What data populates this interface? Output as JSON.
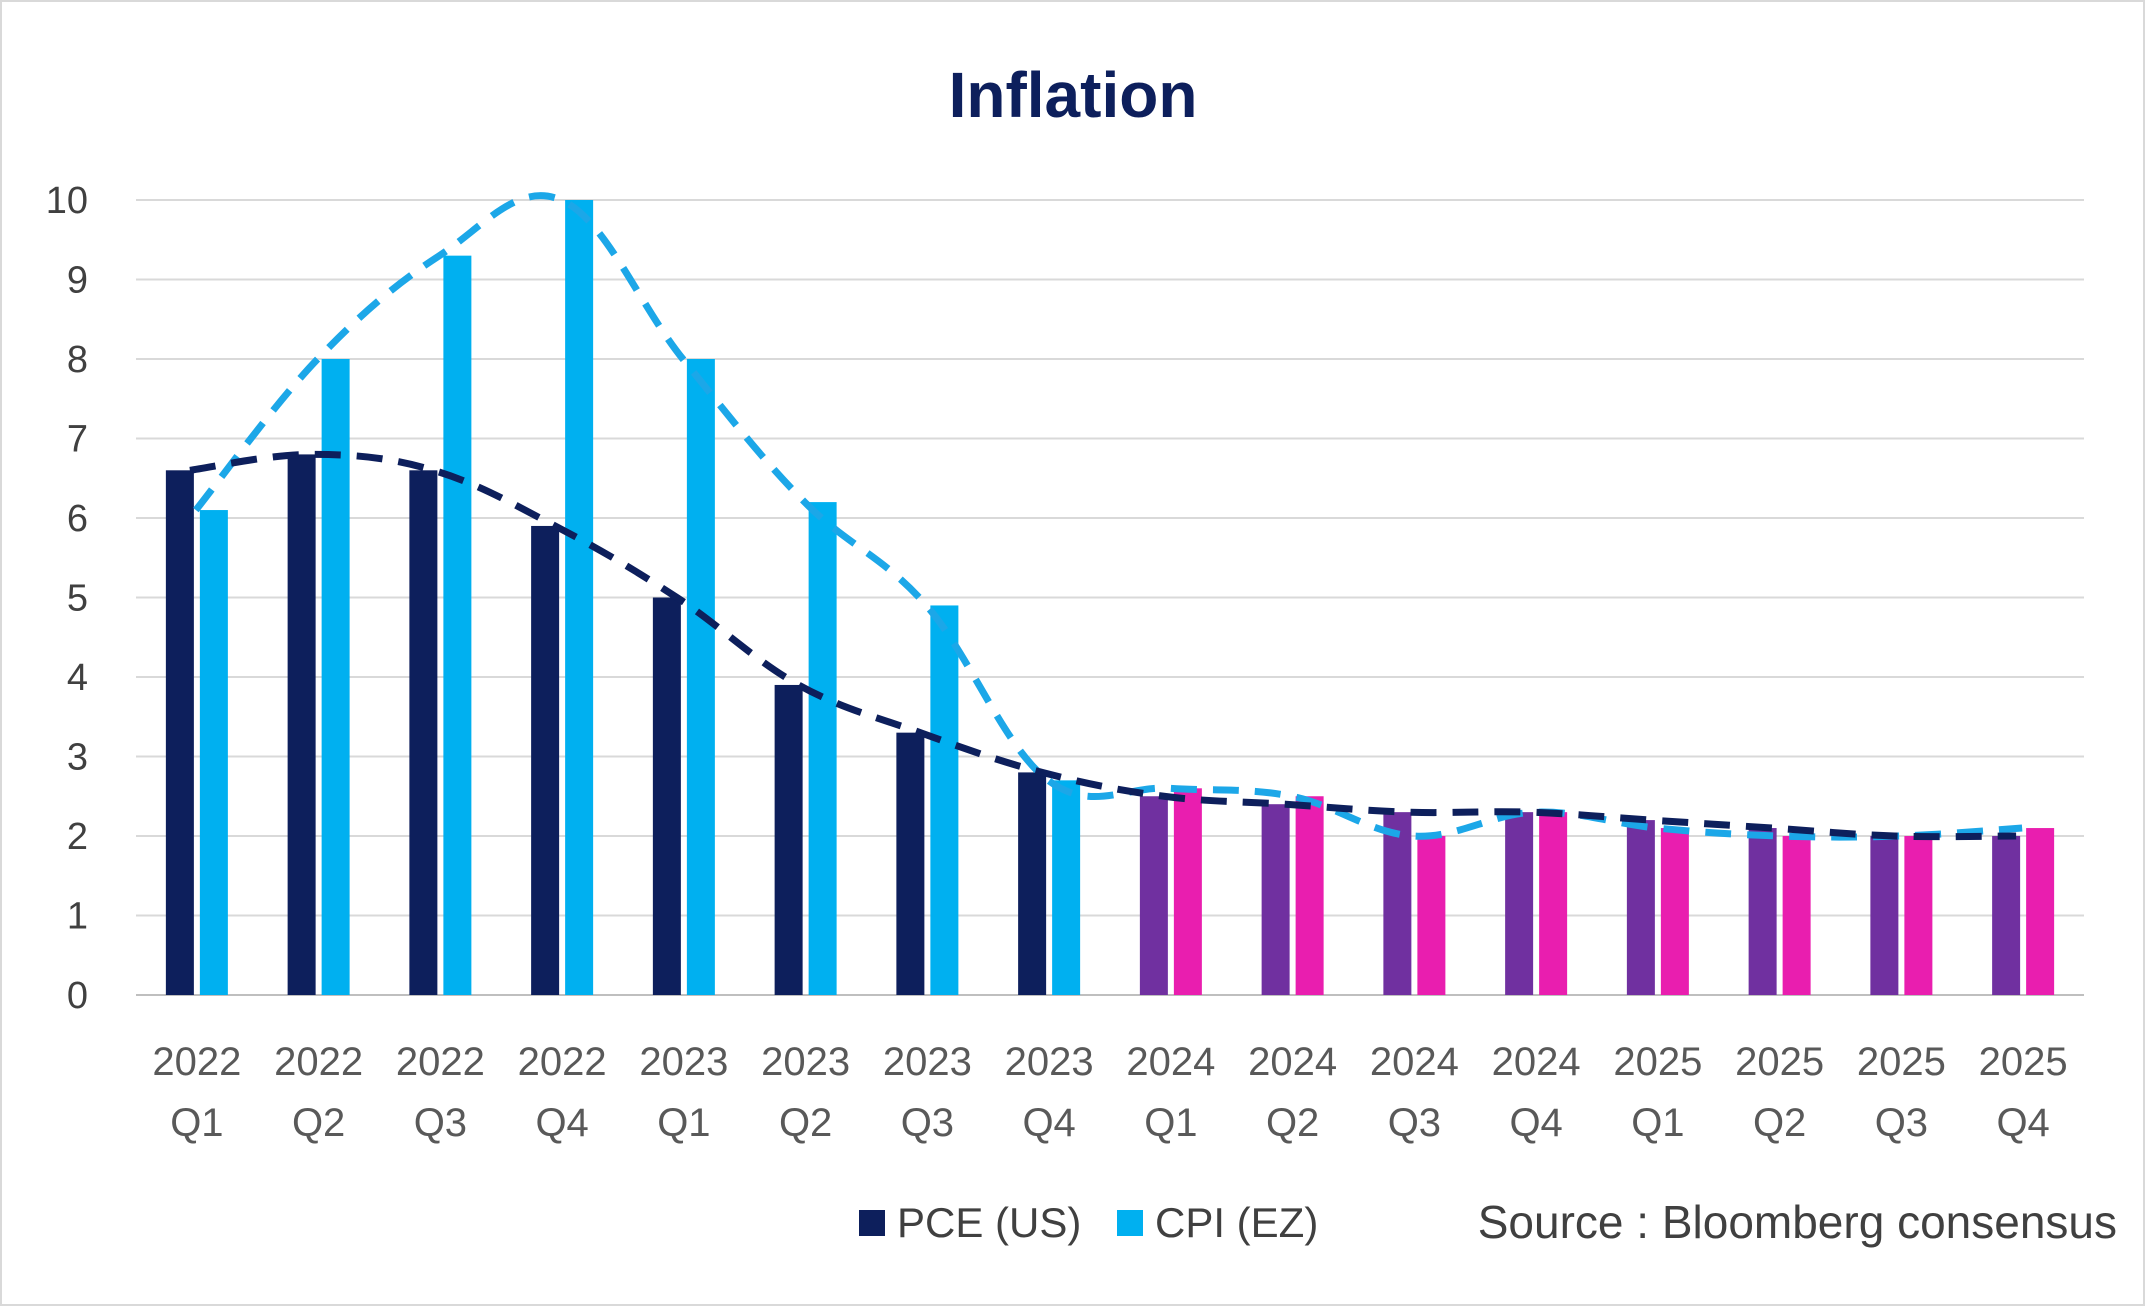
{
  "chart_data": {
    "type": "bar",
    "title": "Inflation",
    "source_note": "Source : Bloomberg consensus",
    "categories": [
      [
        "2022",
        "Q1"
      ],
      [
        "2022",
        "Q2"
      ],
      [
        "2022",
        "Q3"
      ],
      [
        "2022",
        "Q4"
      ],
      [
        "2023",
        "Q1"
      ],
      [
        "2023",
        "Q2"
      ],
      [
        "2023",
        "Q3"
      ],
      [
        "2023",
        "Q4"
      ],
      [
        "2024",
        "Q1"
      ],
      [
        "2024",
        "Q2"
      ],
      [
        "2024",
        "Q3"
      ],
      [
        "2024",
        "Q4"
      ],
      [
        "2025",
        "Q1"
      ],
      [
        "2025",
        "Q2"
      ],
      [
        "2025",
        "Q3"
      ],
      [
        "2025",
        "Q4"
      ]
    ],
    "ylim": [
      0,
      10
    ],
    "yticks": [
      0,
      1,
      2,
      3,
      4,
      5,
      6,
      7,
      8,
      9,
      10
    ],
    "grid": true,
    "legend_position": "bottom",
    "forecast_start_index": 8,
    "series": [
      {
        "name": "PCE (US)",
        "color": "#0d1f5c",
        "forecast_color": "#7030a0",
        "values": [
          6.6,
          6.8,
          6.6,
          5.9,
          5.0,
          3.9,
          3.3,
          2.8,
          2.5,
          2.4,
          2.3,
          2.3,
          2.2,
          2.1,
          2.0,
          2.0
        ],
        "trendline": "dashed"
      },
      {
        "name": "CPI (EZ)",
        "color": "#00b0f0",
        "forecast_color": "#e91eaf",
        "values": [
          6.1,
          8.0,
          9.3,
          10.0,
          8.0,
          6.2,
          4.9,
          2.7,
          2.6,
          2.5,
          2.0,
          2.3,
          2.1,
          2.0,
          2.0,
          2.1
        ],
        "trendline": "dashed"
      }
    ]
  }
}
